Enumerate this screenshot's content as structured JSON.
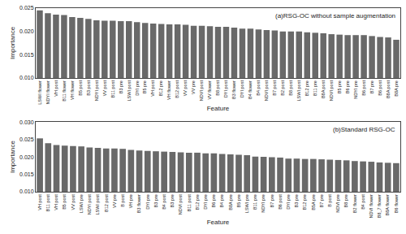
{
  "chart_data": [
    {
      "type": "bar",
      "title": "(a)RSG-OC without sample augmentation",
      "xlabel": "Feature",
      "ylabel": "Importance",
      "color": "#696969",
      "grid": false,
      "categories": [
        "LSWI\nflower",
        "NDYI\nflower",
        "VH\npost",
        "B11\nflower",
        "VH\nflower",
        "B5\npost",
        "B3\npost",
        "NDYI\npost",
        "VV\npost",
        "B11\npost",
        "B3\npre",
        "LSWI\npost",
        "DYI\npre",
        "B5\npre",
        "VH\npost",
        "B12\npre",
        "VH\nflower",
        "B12\npost",
        "VV\npost",
        "VV\npre",
        "NDVI\npost",
        "VV\nflower",
        "B8\npost",
        "DYI\npost",
        "B3\nflower",
        "DYI\npost",
        "B4\nflower",
        "B4\npost",
        "NDVI\npost",
        "B7\npost",
        "B2\npost",
        "B8\npost",
        "LSWI\npost",
        "B12\npre",
        "B11\npre",
        "B8A\npost",
        "NDVI\npost",
        "B5\npre",
        "B6\npre",
        "NDYI\npre",
        "B6\npost",
        "B7\npre",
        "B6\npost",
        "B8A\npost",
        "B8A\npre"
      ],
      "values": [
        0.0245,
        0.0239,
        0.0236,
        0.0235,
        0.0231,
        0.0229,
        0.0227,
        0.0224,
        0.0223,
        0.0223,
        0.0222,
        0.0222,
        0.022,
        0.0218,
        0.0217,
        0.0216,
        0.0215,
        0.0215,
        0.0214,
        0.0212,
        0.0212,
        0.0211,
        0.021,
        0.021,
        0.0208,
        0.0206,
        0.0206,
        0.0204,
        0.0203,
        0.0202,
        0.02,
        0.02,
        0.02,
        0.0198,
        0.0197,
        0.0196,
        0.0194,
        0.0193,
        0.0192,
        0.0192,
        0.0192,
        0.019,
        0.0188,
        0.0187,
        0.0182
      ],
      "ylim": [
        0.01,
        0.025
      ],
      "yticks": [
        {
          "value": 0.01,
          "label": "0.010"
        },
        {
          "value": 0.015,
          "label": "0.015"
        },
        {
          "value": 0.02,
          "label": "0.020"
        },
        {
          "value": 0.025,
          "label": "0.025"
        }
      ]
    },
    {
      "type": "bar",
      "title": "(b)Standard RSG-OC",
      "xlabel": "Feature",
      "ylabel": "Importance",
      "color": "#696969",
      "grid": false,
      "categories": [
        "VH\npost",
        "B11\npost",
        "VH\npost",
        "B5\npost",
        "VV\npost",
        "LSWI\npre",
        "NDYI\npost",
        "LSWI\npost",
        "B12\npost",
        "VV\npre",
        "B\npost",
        "VH\npre",
        "B3\nflower",
        "DYI\npre",
        "B3\npre",
        "B4\npost",
        "B3\npre",
        "NDVI\npost",
        "B11\npost",
        "B12\npre",
        "DYI\npre",
        "B6\npre",
        "B4\npre",
        "B8A\npre",
        "B5\npre",
        "LSWI\npre",
        "B11\npre",
        "NDYI\npre",
        "B7\npre",
        "B6\npost",
        "DYI\npre",
        "B3\npre",
        "B12\npre",
        "B5A\npre",
        "B7\npre",
        "B\npost",
        "NDVI\npre",
        "B8\npre",
        "B2\nflower",
        "B4\npost",
        "NDVI\nflower",
        "B8_7\nflower",
        "B8A\nflower",
        "B6\nflower"
      ],
      "values": [
        0.0253,
        0.0239,
        0.0234,
        0.0232,
        0.0231,
        0.023,
        0.0227,
        0.0226,
        0.0224,
        0.0224,
        0.0223,
        0.022,
        0.0218,
        0.0217,
        0.0216,
        0.0215,
        0.0214,
        0.0213,
        0.0212,
        0.0212,
        0.021,
        0.021,
        0.0208,
        0.0207,
        0.0206,
        0.0205,
        0.0201,
        0.02,
        0.0199,
        0.0198,
        0.0195,
        0.0195,
        0.0194,
        0.0194,
        0.0193,
        0.0192,
        0.0191,
        0.019,
        0.0188,
        0.0187,
        0.0186,
        0.0184,
        0.0183,
        0.0182
      ],
      "ylim": [
        0.01,
        0.03
      ],
      "yticks": [
        {
          "value": 0.01,
          "label": "0.010"
        },
        {
          "value": 0.015,
          "label": "0.015"
        },
        {
          "value": 0.02,
          "label": "0.020"
        },
        {
          "value": 0.025,
          "label": "0.025"
        },
        {
          "value": 0.03,
          "label": "0.030"
        }
      ]
    }
  ]
}
